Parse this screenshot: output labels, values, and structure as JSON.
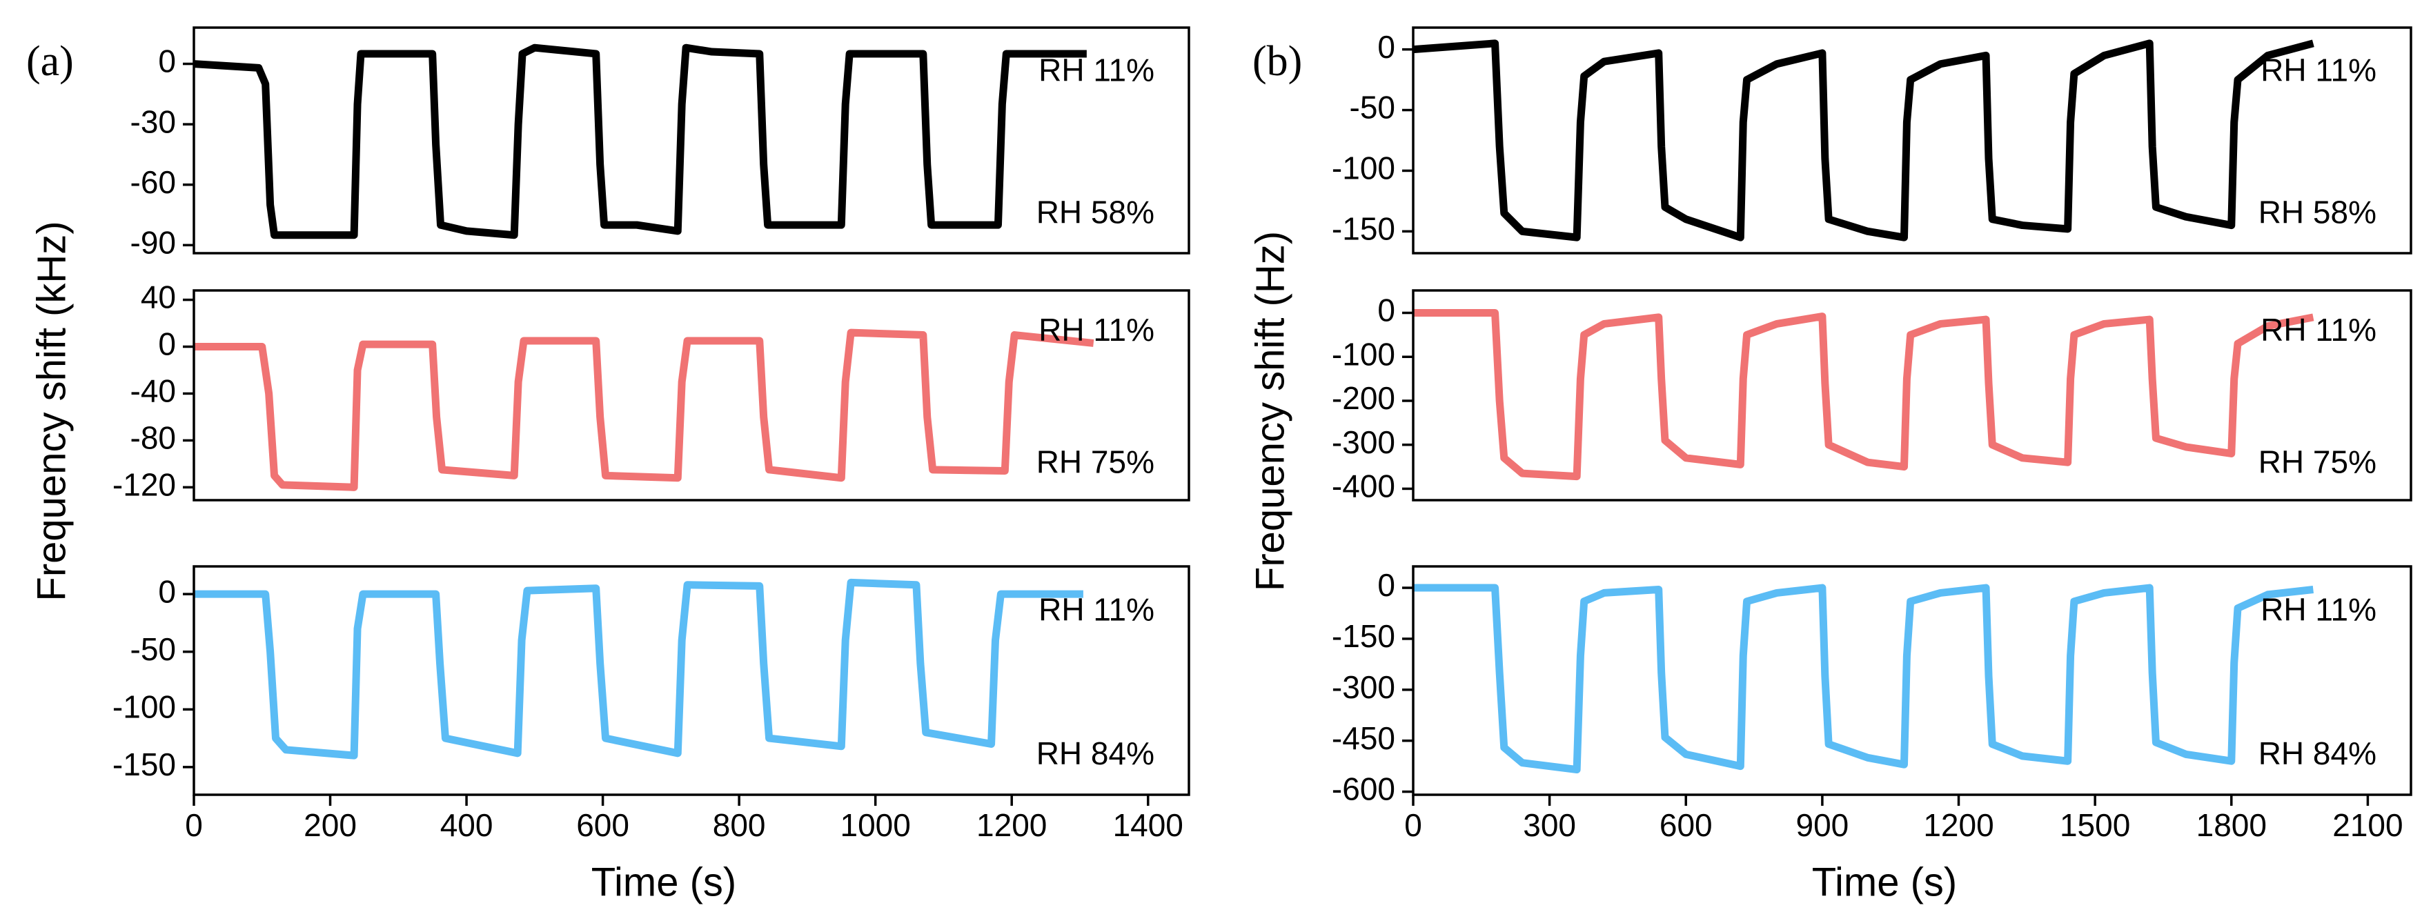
{
  "chart_data": [
    {
      "type": "line",
      "panel_label": "(a)",
      "color": "#000000",
      "x": [
        0,
        95,
        105,
        112,
        118,
        235,
        240,
        245,
        350,
        355,
        362,
        400,
        470,
        476,
        482,
        500,
        590,
        596,
        602,
        650,
        710,
        716,
        722,
        760,
        830,
        836,
        842,
        950,
        956,
        962,
        1070,
        1076,
        1082,
        1180,
        1186,
        1192,
        1310
      ],
      "values": [
        0,
        -2,
        -10,
        -70,
        -85,
        -85,
        -20,
        5,
        5,
        -40,
        -80,
        -83,
        -85,
        -30,
        5,
        8,
        5,
        -50,
        -80,
        -80,
        -83,
        -20,
        8,
        6,
        5,
        -50,
        -80,
        -80,
        -20,
        5,
        5,
        -50,
        -80,
        -80,
        -20,
        5,
        5
      ],
      "xlim": [
        0,
        1460
      ],
      "ylim": [
        -94,
        18
      ],
      "yticks": [
        0,
        -30,
        -60,
        -90
      ],
      "annotations": [
        "RH 11%",
        "RH 58%"
      ]
    },
    {
      "type": "line",
      "ylabel": "Frequency shift (kHz)",
      "color": "#f07373",
      "x": [
        0,
        100,
        110,
        118,
        130,
        235,
        240,
        248,
        350,
        356,
        364,
        470,
        476,
        484,
        590,
        596,
        604,
        710,
        716,
        724,
        830,
        836,
        844,
        950,
        956,
        964,
        1070,
        1076,
        1084,
        1190,
        1196,
        1204,
        1320
      ],
      "values": [
        0,
        0,
        -40,
        -110,
        -118,
        -120,
        -20,
        2,
        2,
        -60,
        -105,
        -110,
        -30,
        5,
        5,
        -60,
        -110,
        -112,
        -30,
        5,
        5,
        -60,
        -105,
        -112,
        -30,
        12,
        10,
        -60,
        -105,
        -106,
        -30,
        10,
        3
      ],
      "xlim": [
        0,
        1460
      ],
      "ylim": [
        -131,
        48
      ],
      "yticks": [
        40,
        0,
        -40,
        -80,
        -120
      ],
      "annotations": [
        "RH 11%",
        "RH 75%"
      ]
    },
    {
      "type": "line",
      "xlabel": "Time (s)",
      "color": "#5bbcf5",
      "x": [
        0,
        105,
        112,
        120,
        135,
        235,
        240,
        248,
        355,
        361,
        369,
        475,
        481,
        489,
        590,
        596,
        604,
        710,
        716,
        724,
        830,
        836,
        844,
        950,
        956,
        964,
        1060,
        1066,
        1074,
        1170,
        1176,
        1184,
        1305
      ],
      "values": [
        0,
        0,
        -50,
        -125,
        -135,
        -140,
        -30,
        0,
        0,
        -60,
        -125,
        -138,
        -40,
        3,
        5,
        -60,
        -125,
        -138,
        -40,
        8,
        7,
        -60,
        -125,
        -132,
        -40,
        10,
        8,
        -60,
        -120,
        -130,
        -40,
        0,
        0
      ],
      "xlim": [
        0,
        1460
      ],
      "xticks": [
        0,
        200,
        400,
        600,
        800,
        1000,
        1200,
        1400
      ],
      "ylim": [
        -174,
        24
      ],
      "yticks": [
        0,
        -50,
        -100,
        -150
      ],
      "annotations": [
        "RH 11%",
        "RH 84%"
      ]
    },
    {
      "type": "line",
      "panel_label": "(b)",
      "color": "#000000",
      "x": [
        0,
        180,
        190,
        200,
        240,
        360,
        368,
        376,
        420,
        540,
        546,
        554,
        600,
        720,
        726,
        734,
        800,
        900,
        906,
        914,
        1000,
        1080,
        1086,
        1094,
        1160,
        1260,
        1266,
        1274,
        1340,
        1440,
        1446,
        1454,
        1520,
        1620,
        1626,
        1634,
        1700,
        1800,
        1806,
        1814,
        1880,
        1980
      ],
      "values": [
        0,
        5,
        -80,
        -135,
        -150,
        -155,
        -60,
        -22,
        -10,
        -3,
        -80,
        -130,
        -140,
        -155,
        -60,
        -25,
        -12,
        -3,
        -90,
        -140,
        -150,
        -155,
        -60,
        -25,
        -12,
        -5,
        -90,
        -140,
        -145,
        -148,
        -60,
        -20,
        -5,
        5,
        -80,
        -130,
        -138,
        -145,
        -60,
        -25,
        -5,
        5
      ],
      "xlim": [
        0,
        2195
      ],
      "ylim": [
        -168,
        18
      ],
      "yticks": [
        0,
        -50,
        -100,
        -150
      ],
      "annotations": [
        "RH 11%",
        "RH 58%"
      ]
    },
    {
      "type": "line",
      "ylabel": "Frequency shift (Hz)",
      "color": "#f07373",
      "x": [
        0,
        180,
        190,
        200,
        240,
        360,
        368,
        376,
        420,
        540,
        546,
        554,
        600,
        720,
        726,
        734,
        800,
        900,
        906,
        914,
        1000,
        1080,
        1086,
        1094,
        1160,
        1260,
        1266,
        1274,
        1340,
        1440,
        1446,
        1454,
        1520,
        1620,
        1626,
        1634,
        1700,
        1800,
        1806,
        1814,
        1880,
        1980
      ],
      "values": [
        0,
        0,
        -200,
        -330,
        -365,
        -372,
        -150,
        -50,
        -25,
        -10,
        -150,
        -290,
        -330,
        -345,
        -150,
        -50,
        -25,
        -8,
        -160,
        -300,
        -340,
        -350,
        -150,
        -50,
        -25,
        -15,
        -160,
        -300,
        -330,
        -340,
        -150,
        -50,
        -25,
        -15,
        -150,
        -285,
        -305,
        -320,
        -150,
        -70,
        -30,
        -10
      ],
      "xlim": [
        0,
        2195
      ],
      "ylim": [
        -426,
        51
      ],
      "yticks": [
        0,
        -100,
        -200,
        -300,
        -400
      ],
      "annotations": [
        "RH 11%",
        "RH 75%"
      ]
    },
    {
      "type": "line",
      "xlabel": "Time (s)",
      "color": "#5bbcf5",
      "x": [
        0,
        180,
        190,
        200,
        240,
        360,
        368,
        376,
        420,
        540,
        546,
        554,
        600,
        720,
        726,
        734,
        800,
        900,
        906,
        914,
        1000,
        1080,
        1086,
        1094,
        1160,
        1260,
        1266,
        1274,
        1340,
        1440,
        1446,
        1454,
        1520,
        1620,
        1626,
        1634,
        1700,
        1800,
        1806,
        1814,
        1880,
        1980
      ],
      "values": [
        0,
        0,
        -250,
        -470,
        -515,
        -535,
        -200,
        -40,
        -15,
        -5,
        -250,
        -440,
        -490,
        -525,
        -200,
        -40,
        -15,
        0,
        -260,
        -460,
        -500,
        -520,
        -200,
        -40,
        -15,
        0,
        -260,
        -460,
        -495,
        -510,
        -200,
        -40,
        -15,
        0,
        -250,
        -455,
        -490,
        -510,
        -220,
        -60,
        -20,
        -5
      ],
      "xlim": [
        0,
        2195
      ],
      "xticks": [
        0,
        300,
        600,
        900,
        1200,
        1500,
        1800,
        2100
      ],
      "ylim": [
        -609,
        63
      ],
      "yticks": [
        0,
        -150,
        -300,
        -450,
        -600
      ],
      "annotations": [
        "RH 11%",
        "RH 84%"
      ]
    }
  ]
}
